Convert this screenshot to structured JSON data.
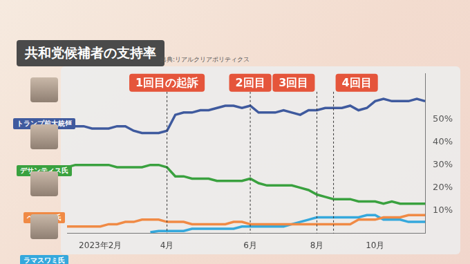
{
  "chart_data": {
    "type": "line",
    "title": "共和党候補者の支持率",
    "source": "出典:リアルクリアポリティクス",
    "categories": [
      null,
      null,
      null,
      null,
      "2023年2月",
      null,
      null,
      null,
      null,
      null,
      null,
      null,
      "4月",
      null,
      null,
      null,
      null,
      null,
      null,
      null,
      null,
      null,
      "6月",
      null,
      null,
      null,
      null,
      null,
      null,
      null,
      "8月",
      null,
      null,
      null,
      null,
      null,
      null,
      "10月",
      null,
      null,
      null,
      null,
      null,
      null
    ],
    "series": [
      {
        "name": "トランプ前大統領",
        "color": "#3f5a9e",
        "values": [
          47,
          47,
          47,
          46,
          46,
          46,
          47,
          47,
          45,
          44,
          44,
          44,
          45,
          52,
          53,
          53,
          54,
          54,
          55,
          56,
          56,
          55,
          56,
          53,
          53,
          53,
          54,
          53,
          52,
          54,
          54,
          55,
          55,
          55,
          56,
          54,
          55,
          58,
          59,
          58,
          58,
          58,
          59,
          58
        ]
      },
      {
        "name": "デサンティス氏",
        "color": "#3aa13f",
        "values": [
          29,
          30,
          30,
          30,
          30,
          30,
          29,
          29,
          29,
          29,
          30,
          30,
          29,
          25,
          25,
          24,
          24,
          24,
          23,
          23,
          23,
          23,
          24,
          22,
          21,
          21,
          21,
          21,
          20,
          19,
          17,
          16,
          15,
          15,
          15,
          14,
          14,
          14,
          13,
          14,
          13,
          13,
          13,
          13
        ]
      },
      {
        "name": "ヘイリー氏",
        "color": "#f08a45",
        "values": [
          3,
          3,
          3,
          3,
          3,
          4,
          4,
          5,
          5,
          6,
          6,
          6,
          5,
          5,
          5,
          4,
          4,
          4,
          4,
          4,
          5,
          5,
          4,
          4,
          4,
          4,
          4,
          4,
          4,
          4,
          4,
          4,
          4,
          4,
          4,
          6,
          6,
          6,
          7,
          7,
          7,
          8,
          8,
          8
        ]
      },
      {
        "name": "ラマスワミ氏",
        "color": "#35a8dc",
        "values": [
          null,
          null,
          null,
          null,
          null,
          null,
          null,
          null,
          null,
          null,
          0.5,
          1,
          1,
          1,
          1,
          2,
          2,
          2,
          2,
          2,
          2,
          3,
          3,
          3,
          3,
          3,
          3,
          4,
          5,
          6,
          7,
          7,
          7,
          7,
          7,
          7,
          8,
          8,
          6,
          6,
          6,
          5,
          5,
          5
        ]
      }
    ],
    "annotations": [
      {
        "text": "1回目の起訴",
        "x_index": 12
      },
      {
        "text": "2回目",
        "x_index": 22
      },
      {
        "text": "3回目",
        "x_index": 30
      },
      {
        "text": "4回目",
        "x_index": 32
      }
    ],
    "ylim": [
      0,
      70
    ],
    "yticks": [
      {
        "value": 10,
        "label": "10%"
      },
      {
        "value": 20,
        "label": "20%"
      },
      {
        "value": 30,
        "label": "30%"
      },
      {
        "value": 40,
        "label": "40%"
      },
      {
        "value": 50,
        "label": "50%"
      }
    ],
    "grid": false,
    "legend": "left",
    "marker": "none",
    "line_style": "solid"
  }
}
